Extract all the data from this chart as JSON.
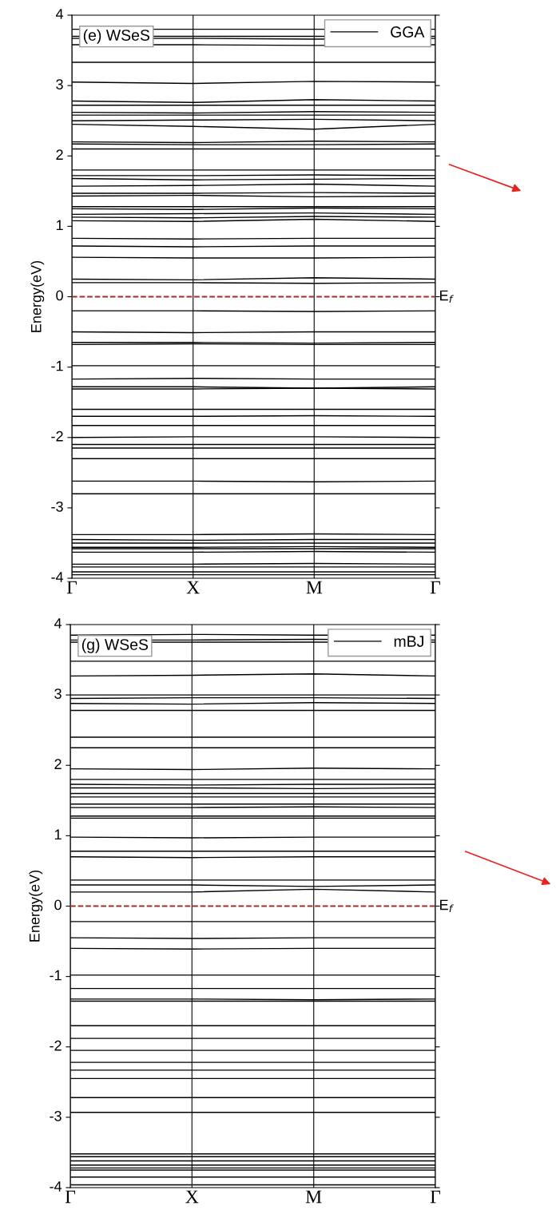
{
  "chart_data": [
    {
      "type": "line",
      "ylabel": "Energy(eV)",
      "color": "#000000",
      "line_style": "solid",
      "marker": "none",
      "legend": "top right",
      "grid": "x",
      "categories": [
        "Γ",
        "X",
        "M",
        "Γ"
      ],
      "ylim": [
        -4,
        4
      ],
      "yticks": [
        -4,
        -3,
        -2,
        -1,
        0,
        1,
        2,
        3,
        4
      ],
      "annotations": [
        "(e) WSeS"
      ],
      "ref_lines": [
        {
          "axis": "y",
          "value": 0,
          "label": "E$_{f}$",
          "color": "#a0302a",
          "line_style": "dashed"
        }
      ],
      "series": [
        {
          "name": "GGA",
          "values": [
            3.8,
            3.8,
            3.8,
            3.8
          ]
        },
        {
          "values": [
            3.7,
            3.7,
            3.7,
            3.7
          ]
        },
        {
          "values": [
            3.67,
            3.67,
            3.66,
            3.67
          ]
        },
        {
          "values": [
            3.58,
            3.58,
            3.57,
            3.58
          ]
        },
        {
          "values": [
            3.33,
            3.33,
            3.33,
            3.33
          ]
        },
        {
          "values": [
            3.05,
            3.03,
            3.06,
            3.05
          ]
        },
        {
          "values": [
            2.78,
            2.76,
            2.8,
            2.78
          ]
        },
        {
          "values": [
            2.72,
            2.72,
            2.72,
            2.72
          ]
        },
        {
          "values": [
            2.62,
            2.61,
            2.63,
            2.62
          ]
        },
        {
          "values": [
            2.58,
            2.58,
            2.58,
            2.58
          ]
        },
        {
          "values": [
            2.5,
            2.51,
            2.52,
            2.5
          ]
        },
        {
          "values": [
            2.45,
            2.42,
            2.38,
            2.45
          ]
        },
        {
          "values": [
            2.2,
            2.19,
            2.21,
            2.2
          ]
        },
        {
          "values": [
            2.17,
            2.16,
            2.16,
            2.17
          ]
        },
        {
          "values": [
            2.1,
            2.1,
            2.1,
            2.1
          ]
        },
        {
          "values": [
            1.8,
            1.8,
            1.8,
            1.8
          ]
        },
        {
          "values": [
            1.72,
            1.72,
            1.73,
            1.72
          ]
        },
        {
          "values": [
            1.68,
            1.66,
            1.67,
            1.68
          ]
        },
        {
          "values": [
            1.57,
            1.58,
            1.6,
            1.57
          ]
        },
        {
          "values": [
            1.47,
            1.47,
            1.48,
            1.47
          ]
        },
        {
          "values": [
            1.43,
            1.44,
            1.42,
            1.43
          ]
        },
        {
          "values": [
            1.28,
            1.28,
            1.28,
            1.28
          ]
        },
        {
          "values": [
            1.25,
            1.24,
            1.26,
            1.25
          ]
        },
        {
          "values": [
            1.17,
            1.18,
            1.19,
            1.17
          ]
        },
        {
          "values": [
            1.13,
            1.12,
            1.14,
            1.13
          ]
        },
        {
          "values": [
            1.08,
            1.07,
            1.1,
            1.07
          ]
        },
        {
          "values": [
            0.83,
            0.82,
            0.83,
            0.83
          ]
        },
        {
          "values": [
            0.72,
            0.71,
            0.72,
            0.72
          ]
        },
        {
          "values": [
            0.56,
            0.55,
            0.55,
            0.56
          ]
        },
        {
          "values": [
            0.25,
            0.24,
            0.27,
            0.25
          ]
        },
        {
          "values": [
            0.2,
            0.2,
            0.19,
            0.2
          ]
        },
        {
          "values": [
            -0.2,
            -0.2,
            -0.21,
            -0.2
          ]
        },
        {
          "values": [
            -0.5,
            -0.51,
            -0.5,
            -0.5
          ]
        },
        {
          "values": [
            -0.65,
            -0.65,
            -0.66,
            -0.65
          ]
        },
        {
          "values": [
            -0.68,
            -0.67,
            -0.68,
            -0.68
          ]
        },
        {
          "values": [
            -0.98,
            -0.98,
            -0.98,
            -0.98
          ]
        },
        {
          "values": [
            -1.17,
            -1.16,
            -1.17,
            -1.17
          ]
        },
        {
          "values": [
            -1.28,
            -1.28,
            -1.3,
            -1.28
          ]
        },
        {
          "values": [
            -1.31,
            -1.31,
            -1.3,
            -1.31
          ]
        },
        {
          "values": [
            -1.6,
            -1.6,
            -1.6,
            -1.6
          ]
        },
        {
          "values": [
            -1.7,
            -1.7,
            -1.69,
            -1.7
          ]
        },
        {
          "values": [
            -1.83,
            -1.83,
            -1.83,
            -1.83
          ]
        },
        {
          "values": [
            -2.0,
            -1.99,
            -1.99,
            -2.0
          ]
        },
        {
          "values": [
            -2.1,
            -2.1,
            -2.1,
            -2.1
          ]
        },
        {
          "values": [
            -2.15,
            -2.15,
            -2.15,
            -2.15
          ]
        },
        {
          "values": [
            -2.3,
            -2.3,
            -2.3,
            -2.3
          ]
        },
        {
          "values": [
            -2.62,
            -2.62,
            -2.63,
            -2.62
          ]
        },
        {
          "values": [
            -2.8,
            -2.8,
            -2.8,
            -2.8
          ]
        },
        {
          "values": [
            -3.38,
            -3.38,
            -3.37,
            -3.38
          ]
        },
        {
          "values": [
            -3.45,
            -3.46,
            -3.45,
            -3.45
          ]
        },
        {
          "values": [
            -3.5,
            -3.5,
            -3.5,
            -3.5
          ]
        },
        {
          "values": [
            -3.56,
            -3.56,
            -3.55,
            -3.56
          ]
        },
        {
          "values": [
            -3.58,
            -3.58,
            -3.58,
            -3.58
          ]
        },
        {
          "values": [
            -3.63,
            -3.63,
            -3.62,
            -3.63
          ]
        },
        {
          "values": [
            -3.8,
            -3.8,
            -3.79,
            -3.8
          ]
        },
        {
          "values": [
            -3.84,
            -3.84,
            -3.84,
            -3.84
          ]
        },
        {
          "values": [
            -3.91,
            -3.91,
            -3.91,
            -3.91
          ]
        },
        {
          "values": [
            -3.95,
            -3.95,
            -3.95,
            -3.95
          ]
        }
      ]
    },
    {
      "type": "line",
      "ylabel": "Energy(eV)",
      "color": "#000000",
      "line_style": "solid",
      "marker": "none",
      "legend": "top right",
      "grid": "x",
      "categories": [
        "Γ",
        "X",
        "M",
        "Γ"
      ],
      "ylim": [
        -4,
        4
      ],
      "yticks": [
        -4,
        -3,
        -2,
        -1,
        0,
        1,
        2,
        3,
        4
      ],
      "annotations": [
        "(g) WSeS"
      ],
      "ref_lines": [
        {
          "axis": "y",
          "value": 0,
          "label": "E$_{f}$",
          "color": "#a0302a",
          "line_style": "dashed"
        }
      ],
      "series": [
        {
          "name": "mBJ",
          "values": [
            3.85,
            3.86,
            3.85,
            3.85
          ]
        },
        {
          "values": [
            3.78,
            3.78,
            3.79,
            3.78
          ]
        },
        {
          "values": [
            3.75,
            3.75,
            3.75,
            3.75
          ]
        },
        {
          "values": [
            3.48,
            3.48,
            3.48,
            3.48
          ]
        },
        {
          "values": [
            3.27,
            3.28,
            3.3,
            3.27
          ]
        },
        {
          "values": [
            3.0,
            3.0,
            3.0,
            3.0
          ]
        },
        {
          "values": [
            2.95,
            2.96,
            2.96,
            2.95
          ]
        },
        {
          "values": [
            2.88,
            2.87,
            2.89,
            2.88
          ]
        },
        {
          "values": [
            2.78,
            2.78,
            2.78,
            2.78
          ]
        },
        {
          "values": [
            2.4,
            2.4,
            2.4,
            2.4
          ]
        },
        {
          "values": [
            2.25,
            2.25,
            2.25,
            2.25
          ]
        },
        {
          "values": [
            1.95,
            1.94,
            1.96,
            1.95
          ]
        },
        {
          "values": [
            1.8,
            1.8,
            1.8,
            1.8
          ]
        },
        {
          "values": [
            1.73,
            1.72,
            1.73,
            1.73
          ]
        },
        {
          "values": [
            1.68,
            1.68,
            1.67,
            1.68
          ]
        },
        {
          "values": [
            1.6,
            1.6,
            1.6,
            1.6
          ]
        },
        {
          "values": [
            1.55,
            1.55,
            1.55,
            1.55
          ]
        },
        {
          "values": [
            1.45,
            1.45,
            1.45,
            1.45
          ]
        },
        {
          "values": [
            1.4,
            1.4,
            1.41,
            1.4
          ]
        },
        {
          "values": [
            1.28,
            1.28,
            1.28,
            1.28
          ]
        },
        {
          "values": [
            1.25,
            1.25,
            1.25,
            1.25
          ]
        },
        {
          "values": [
            0.98,
            0.97,
            0.98,
            0.98
          ]
        },
        {
          "values": [
            0.78,
            0.78,
            0.78,
            0.78
          ]
        },
        {
          "values": [
            0.7,
            0.69,
            0.7,
            0.7
          ]
        },
        {
          "values": [
            0.37,
            0.37,
            0.37,
            0.37
          ]
        },
        {
          "values": [
            0.3,
            0.3,
            0.28,
            0.3
          ]
        },
        {
          "values": [
            0.2,
            0.2,
            0.24,
            0.2
          ]
        },
        {
          "values": [
            -0.22,
            -0.22,
            -0.22,
            -0.22
          ]
        },
        {
          "values": [
            -0.45,
            -0.46,
            -0.45,
            -0.45
          ]
        },
        {
          "values": [
            -0.6,
            -0.61,
            -0.6,
            -0.6
          ]
        },
        {
          "values": [
            -0.98,
            -0.98,
            -0.98,
            -0.98
          ]
        },
        {
          "values": [
            -1.17,
            -1.17,
            -1.17,
            -1.17
          ]
        },
        {
          "values": [
            -1.32,
            -1.32,
            -1.33,
            -1.32
          ]
        },
        {
          "values": [
            -1.35,
            -1.35,
            -1.35,
            -1.35
          ]
        },
        {
          "values": [
            -1.7,
            -1.7,
            -1.7,
            -1.7
          ]
        },
        {
          "values": [
            -1.88,
            -1.88,
            -1.88,
            -1.88
          ]
        },
        {
          "values": [
            -2.05,
            -2.05,
            -2.05,
            -2.05
          ]
        },
        {
          "values": [
            -2.22,
            -2.22,
            -2.22,
            -2.22
          ]
        },
        {
          "values": [
            -2.33,
            -2.33,
            -2.33,
            -2.33
          ]
        },
        {
          "values": [
            -2.45,
            -2.45,
            -2.45,
            -2.45
          ]
        },
        {
          "values": [
            -2.72,
            -2.72,
            -2.72,
            -2.72
          ]
        },
        {
          "values": [
            -2.93,
            -2.93,
            -2.93,
            -2.93
          ]
        },
        {
          "values": [
            -3.52,
            -3.52,
            -3.52,
            -3.52
          ]
        },
        {
          "values": [
            -3.56,
            -3.56,
            -3.56,
            -3.56
          ]
        },
        {
          "values": [
            -3.62,
            -3.62,
            -3.62,
            -3.62
          ]
        },
        {
          "values": [
            -3.68,
            -3.68,
            -3.68,
            -3.68
          ]
        },
        {
          "values": [
            -3.72,
            -3.72,
            -3.72,
            -3.72
          ]
        },
        {
          "values": [
            -3.75,
            -3.75,
            -3.75,
            -3.75
          ]
        },
        {
          "values": [
            -3.85,
            -3.85,
            -3.85,
            -3.85
          ]
        },
        {
          "values": [
            -3.96,
            -3.96,
            -3.96,
            -3.96
          ]
        }
      ]
    }
  ]
}
